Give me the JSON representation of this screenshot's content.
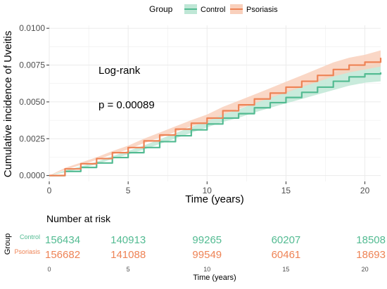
{
  "colors": {
    "control": "#53bb92",
    "psoriasis": "#ee8355",
    "control_band": "#bfe7d6",
    "psoriasis_band": "#f9d0bc",
    "grid": "#ebebeb",
    "axis_text": "#4d4d4d",
    "text": "#000000"
  },
  "legend": {
    "title": "Group",
    "items": [
      {
        "label": "Control",
        "color": "#53bb92",
        "fill": "#bfe7d6"
      },
      {
        "label": "Psoriasis",
        "color": "#ee8355",
        "fill": "#f9d0bc"
      }
    ]
  },
  "chart_data": {
    "type": "line",
    "title": "",
    "xlabel": "Time (years)",
    "ylabel": "Cumulative incidence of Uveitis",
    "xlim": [
      0,
      21
    ],
    "ylim": [
      -0.0004,
      0.0102
    ],
    "x_ticks": [
      0,
      5,
      10,
      15,
      20
    ],
    "x_tick_labels": [
      "0",
      "5",
      "10",
      "15",
      "20"
    ],
    "y_ticks": [
      0.0,
      0.0025,
      0.005,
      0.0075,
      0.01
    ],
    "y_tick_labels": [
      "0.0000",
      "0.0025",
      "0.0050",
      "0.0075",
      "0.0100"
    ],
    "grid": true,
    "legend_position": "top",
    "annotations": [
      "Log-rank",
      "p = 0.00089"
    ],
    "series": [
      {
        "name": "Control",
        "color": "#53bb92",
        "band": "#bfe7d6",
        "x": [
          0,
          1,
          2,
          3,
          4,
          5,
          6,
          7,
          8,
          9,
          10,
          11,
          12,
          13,
          14,
          15,
          16,
          17,
          18,
          19,
          20,
          21
        ],
        "y": [
          0.0,
          0.00028,
          0.00055,
          0.00085,
          0.00122,
          0.00155,
          0.0019,
          0.0023,
          0.0027,
          0.0031,
          0.0035,
          0.0039,
          0.0042,
          0.0046,
          0.00495,
          0.0053,
          0.00565,
          0.006,
          0.0064,
          0.0067,
          0.0069,
          0.007
        ],
        "lower": [
          0.0,
          0.00022,
          0.00048,
          0.00077,
          0.00112,
          0.00143,
          0.00176,
          0.00214,
          0.00252,
          0.0029,
          0.00327,
          0.00364,
          0.00392,
          0.00428,
          0.0046,
          0.0049,
          0.0052,
          0.0055,
          0.0058,
          0.0061,
          0.0063,
          0.0064
        ],
        "upper": [
          0.0,
          0.00034,
          0.00062,
          0.00093,
          0.00132,
          0.00167,
          0.00204,
          0.00246,
          0.00288,
          0.0033,
          0.00373,
          0.00416,
          0.00448,
          0.00492,
          0.0053,
          0.0057,
          0.0061,
          0.0065,
          0.007,
          0.0073,
          0.0075,
          0.0076
        ]
      },
      {
        "name": "Psoriasis",
        "color": "#ee8355",
        "band": "#f9d0bc",
        "x": [
          0,
          1,
          2,
          3,
          4,
          5,
          6,
          7,
          8,
          9,
          10,
          11,
          12,
          13,
          14,
          15,
          16,
          17,
          18,
          19,
          20,
          21
        ],
        "y": [
          0.0,
          0.00045,
          0.0008,
          0.00115,
          0.00155,
          0.0019,
          0.00235,
          0.00275,
          0.00315,
          0.00355,
          0.0039,
          0.0044,
          0.0048,
          0.0052,
          0.0056,
          0.006,
          0.0064,
          0.0068,
          0.0072,
          0.0075,
          0.0077,
          0.008
        ],
        "lower": [
          0.0,
          0.00038,
          0.00072,
          0.00106,
          0.00144,
          0.00177,
          0.0022,
          0.00258,
          0.00296,
          0.00334,
          0.00366,
          0.00414,
          0.00452,
          0.0049,
          0.00527,
          0.00563,
          0.006,
          0.00636,
          0.00672,
          0.007,
          0.0072,
          0.0074
        ],
        "upper": [
          0.0,
          0.00052,
          0.00088,
          0.00124,
          0.00166,
          0.00203,
          0.0025,
          0.00292,
          0.00334,
          0.00376,
          0.00414,
          0.00466,
          0.00508,
          0.0055,
          0.00593,
          0.00637,
          0.0068,
          0.00724,
          0.00768,
          0.008,
          0.0082,
          0.0085
        ]
      }
    ]
  },
  "risk_table": {
    "title": "Number at risk",
    "ylabel": "Group",
    "xlabel": "Time (years)",
    "x_tick_labels": [
      "0",
      "5",
      "10",
      "15",
      "20"
    ],
    "x_ticks": [
      0,
      5,
      10,
      15,
      20
    ],
    "xlim": [
      0,
      21
    ],
    "rows": [
      {
        "label": "Control",
        "color": "#53bb92",
        "values": [
          "156434",
          "140913",
          "99265",
          "60207",
          "18508"
        ]
      },
      {
        "label": "Psoriasis",
        "color": "#ee8355",
        "values": [
          "156682",
          "141088",
          "99549",
          "60461",
          "18693"
        ]
      }
    ]
  }
}
